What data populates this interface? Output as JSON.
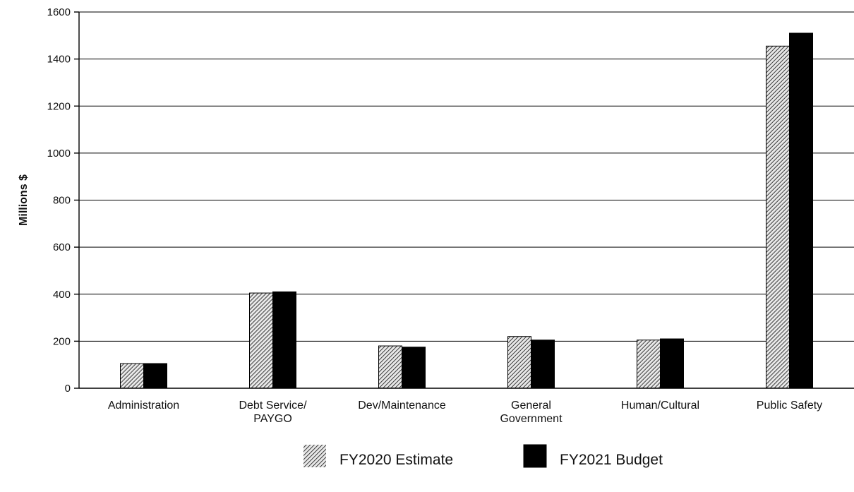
{
  "chart_data": {
    "type": "bar",
    "ylabel": "Millions $",
    "ylim": [
      0,
      1600
    ],
    "yticks": [
      "0",
      "200",
      "400",
      "600",
      "800",
      "1000",
      "1200",
      "1400",
      "1600"
    ],
    "grid": true,
    "categories": [
      [
        "Administration"
      ],
      [
        "Debt Service/",
        "PAYGO"
      ],
      [
        "Dev/Maintenance"
      ],
      [
        "General",
        "Government"
      ],
      [
        "Human/Cultural"
      ],
      [
        "Public Safety"
      ]
    ],
    "series": [
      {
        "name": "FY2020 Estimate",
        "pattern": "hatched",
        "color": "#555555",
        "values": [
          105,
          405,
          180,
          220,
          205,
          1455
        ]
      },
      {
        "name": "FY2021 Budget",
        "pattern": "solid",
        "color": "#000000",
        "values": [
          105,
          410,
          175,
          205,
          210,
          1510
        ]
      }
    ],
    "legend": {
      "position": "bottom-center"
    }
  }
}
